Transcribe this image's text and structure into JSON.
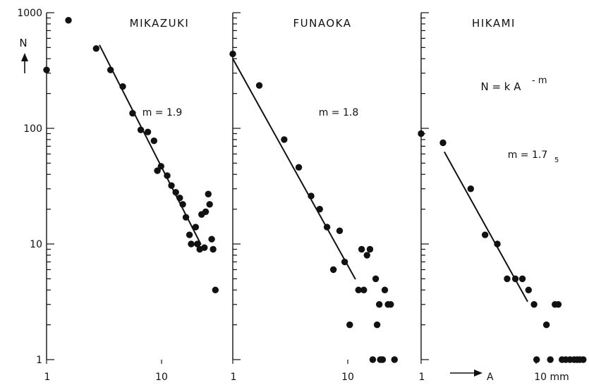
{
  "chart_data": [
    {
      "type": "scatter",
      "title": "MIKAZUKI",
      "xscale": "log",
      "yscale": "log",
      "xlim": [
        1,
        30
      ],
      "ylim": [
        1,
        1000
      ],
      "y_ticks": [
        "1",
        "10",
        "100",
        "1000"
      ],
      "x_tick_labels": [
        "1",
        "10"
      ],
      "ylabel": "N",
      "annotation": "m = 1.9",
      "points": [
        {
          "x": 1.0,
          "y": 320
        },
        {
          "x": 1.55,
          "y": 860
        },
        {
          "x": 2.7,
          "y": 490
        },
        {
          "x": 3.6,
          "y": 320
        },
        {
          "x": 4.6,
          "y": 230
        },
        {
          "x": 5.6,
          "y": 135
        },
        {
          "x": 6.6,
          "y": 97
        },
        {
          "x": 7.6,
          "y": 93
        },
        {
          "x": 8.6,
          "y": 78
        },
        {
          "x": 9.2,
          "y": 43
        },
        {
          "x": 9.9,
          "y": 47
        },
        {
          "x": 11.2,
          "y": 39
        },
        {
          "x": 12.2,
          "y": 32
        },
        {
          "x": 13.3,
          "y": 28
        },
        {
          "x": 14.4,
          "y": 25
        },
        {
          "x": 15.3,
          "y": 22
        },
        {
          "x": 16.3,
          "y": 17
        },
        {
          "x": 17.5,
          "y": 12
        },
        {
          "x": 18.1,
          "y": 10
        },
        {
          "x": 19.8,
          "y": 14
        },
        {
          "x": 20.5,
          "y": 10
        },
        {
          "x": 21.5,
          "y": 9
        },
        {
          "x": 22.3,
          "y": 18
        },
        {
          "x": 23.6,
          "y": 9.3
        },
        {
          "x": 24.2,
          "y": 19
        },
        {
          "x": 25.5,
          "y": 27
        },
        {
          "x": 26.2,
          "y": 22
        },
        {
          "x": 27.3,
          "y": 11
        },
        {
          "x": 28.1,
          "y": 9
        },
        {
          "x": 29.4,
          "y": 4
        }
      ],
      "fit": [
        {
          "x": 2.9,
          "y": 520
        },
        {
          "x": 21.9,
          "y": 10
        }
      ]
    },
    {
      "type": "scatter",
      "title": "FUNAOKA",
      "xscale": "log",
      "yscale": "log",
      "xlim": [
        1,
        30
      ],
      "ylim": [
        1,
        1000
      ],
      "x_tick_labels": [
        "1",
        "10"
      ],
      "annotation": "m = 1.8",
      "points": [
        {
          "x": 1.0,
          "y": 440
        },
        {
          "x": 1.7,
          "y": 235
        },
        {
          "x": 2.8,
          "y": 80
        },
        {
          "x": 3.75,
          "y": 46
        },
        {
          "x": 4.8,
          "y": 26
        },
        {
          "x": 5.7,
          "y": 20
        },
        {
          "x": 6.6,
          "y": 14
        },
        {
          "x": 7.5,
          "y": 6
        },
        {
          "x": 8.5,
          "y": 13
        },
        {
          "x": 9.4,
          "y": 7
        },
        {
          "x": 10.4,
          "y": 2
        },
        {
          "x": 12.4,
          "y": 4
        },
        {
          "x": 13.2,
          "y": 9
        },
        {
          "x": 13.8,
          "y": 4
        },
        {
          "x": 14.7,
          "y": 8
        },
        {
          "x": 15.6,
          "y": 9
        },
        {
          "x": 16.5,
          "y": 1
        },
        {
          "x": 17.5,
          "y": 5
        },
        {
          "x": 18.0,
          "y": 2
        },
        {
          "x": 18.8,
          "y": 3
        },
        {
          "x": 19.2,
          "y": 1
        },
        {
          "x": 20.1,
          "y": 1
        },
        {
          "x": 21.0,
          "y": 4
        },
        {
          "x": 22.4,
          "y": 3
        },
        {
          "x": 23.6,
          "y": 3
        },
        {
          "x": 25.5,
          "y": 1
        }
      ],
      "fit": [
        {
          "x": 1.0,
          "y": 400
        },
        {
          "x": 11.6,
          "y": 5
        }
      ]
    },
    {
      "type": "scatter",
      "title": "HIKAMI",
      "xscale": "log",
      "yscale": "log",
      "xlim": [
        1,
        30
      ],
      "ylim": [
        1,
        1000
      ],
      "x_tick_labels": [
        "1",
        "10 mm"
      ],
      "xlabel": "A",
      "annotation": "m = 1.75",
      "formula": "N = k A",
      "formula_exponent": "- m",
      "points": [
        {
          "x": 1.0,
          "y": 90
        },
        {
          "x": 1.55,
          "y": 75
        },
        {
          "x": 2.7,
          "y": 30
        },
        {
          "x": 3.6,
          "y": 12
        },
        {
          "x": 4.6,
          "y": 10
        },
        {
          "x": 5.6,
          "y": 5
        },
        {
          "x": 6.6,
          "y": 5
        },
        {
          "x": 7.6,
          "y": 5
        },
        {
          "x": 8.6,
          "y": 4
        },
        {
          "x": 9.6,
          "y": 3
        },
        {
          "x": 10.1,
          "y": 1
        },
        {
          "x": 12.3,
          "y": 2
        },
        {
          "x": 13.3,
          "y": 1
        },
        {
          "x": 14.6,
          "y": 3
        },
        {
          "x": 15.6,
          "y": 3
        },
        {
          "x": 16.8,
          "y": 1
        },
        {
          "x": 18.1,
          "y": 1
        },
        {
          "x": 19.7,
          "y": 1
        },
        {
          "x": 21.4,
          "y": 1
        },
        {
          "x": 22.7,
          "y": 1
        },
        {
          "x": 24.0,
          "y": 1
        },
        {
          "x": 25.7,
          "y": 1
        }
      ],
      "fit": [
        {
          "x": 1.6,
          "y": 62
        },
        {
          "x": 8.4,
          "y": 3.2
        }
      ]
    }
  ]
}
